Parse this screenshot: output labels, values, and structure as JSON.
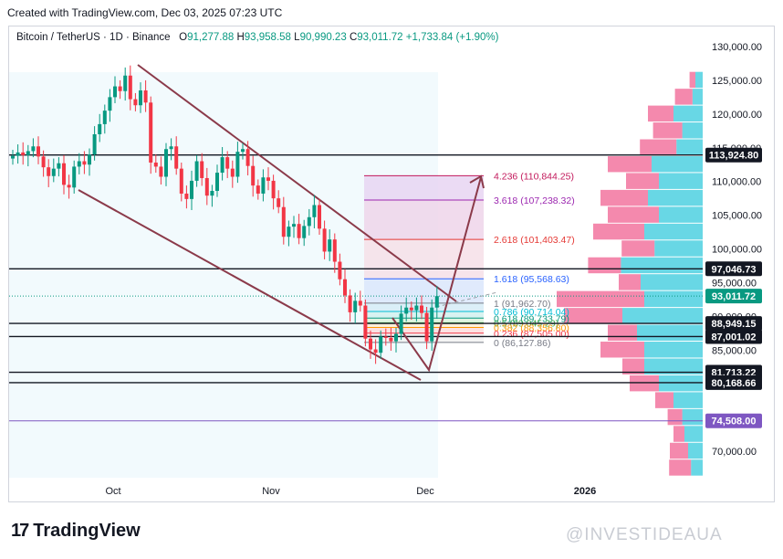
{
  "header": {
    "created_line": "Created with TradingView.com, Dec 03, 2025 07:23 UTC"
  },
  "legend": {
    "symbol": "Bitcoin / TetherUS · 1D · Binance",
    "open_label": "O",
    "open": "91,277.88",
    "high_label": "H",
    "high": "93,958.58",
    "low_label": "L",
    "low": "90,990.23",
    "close_label": "C",
    "close": "93,011.72",
    "change": "+1,733.84 (+1.90%)"
  },
  "footer": {
    "brand": "TradingView",
    "watermark": "@INVESTIDEAUA"
  },
  "colors": {
    "up": "#089981",
    "down": "#f23645",
    "trendline": "#8b3a4a",
    "volume_profile_up": "#4dd0e1",
    "volume_profile_down": "#f06292",
    "purple_line": "#7e57c2"
  },
  "chart_data": {
    "type": "candlestick",
    "x_ticks": [
      "Oct",
      "Nov",
      "Dec",
      "2026"
    ],
    "y_ticks": [
      "130,000.00",
      "125,000.00",
      "120,000.00",
      "115,000.00",
      "110,000.00",
      "105,000.00",
      "100,000.00",
      "95,000.00",
      "90,000.00",
      "85,000.00",
      "80,000.00",
      "75,000.00",
      "70,000.00"
    ],
    "ylim": [
      65500,
      131500
    ],
    "closes": [
      113800,
      114300,
      113900,
      114500,
      115200,
      113700,
      112100,
      110800,
      111900,
      112700,
      109500,
      109100,
      112200,
      113000,
      112500,
      114000,
      117000,
      118500,
      120500,
      122500,
      124100,
      123400,
      125700,
      122200,
      121300,
      123500,
      121700,
      112800,
      112200,
      110700,
      114800,
      115200,
      111900,
      108200,
      107400,
      110100,
      113000,
      110500,
      107900,
      108600,
      111300,
      113600,
      111900,
      110700,
      114400,
      114800,
      112300,
      109400,
      108200,
      110600,
      110100,
      107500,
      106200,
      101800,
      103300,
      103700,
      101600,
      103400,
      104700,
      106500,
      103000,
      99600,
      101400,
      98100,
      95500,
      93100,
      90600,
      92300,
      91600,
      86700,
      85100,
      84600,
      87000,
      86800,
      86300,
      87400,
      90400,
      91300,
      90900,
      91600,
      90500,
      86300,
      91300,
      93000
    ],
    "opens_shift": "previous_close",
    "horizontal_levels": [
      {
        "value": 113924.8,
        "label": "113,924.80",
        "style": "dark"
      },
      {
        "value": 97046.73,
        "label": "97,046.73",
        "style": "dark"
      },
      {
        "value": 88949.15,
        "label": "88,949.15",
        "style": "dark"
      },
      {
        "value": 87001.02,
        "label": "87,001.02",
        "style": "dark"
      },
      {
        "value": 81713.22,
        "label": "81,713.22",
        "style": "dark"
      },
      {
        "value": 80168.66,
        "label": "80,168.66",
        "style": "dark"
      },
      {
        "value": 74508.0,
        "label": "74,508.00",
        "style": "purple"
      }
    ],
    "current_price": {
      "value": 93011.72,
      "label": "93,011.72"
    },
    "fib_levels": [
      {
        "ratio": "4.236",
        "value": 110844.25,
        "text": "4.236 (110,844.25)",
        "color": "#c2185b"
      },
      {
        "ratio": "3.618",
        "value": 107238.32,
        "text": "3.618 (107,238.32)",
        "color": "#9c27b0"
      },
      {
        "ratio": "2.618",
        "value": 101403.47,
        "text": "2.618 (101,403.47)",
        "color": "#e53935"
      },
      {
        "ratio": "1.618",
        "value": 95568.63,
        "text": "1.618 (95,568.63)",
        "color": "#2962ff"
      },
      {
        "ratio": "1",
        "value": 91962.7,
        "text": "1 (91,962.70)",
        "color": "#787b86"
      },
      {
        "ratio": "0.786",
        "value": 90714.04,
        "text": "0.786 (90,714.04)",
        "color": "#00bcd4"
      },
      {
        "ratio": "0.618",
        "value": 89733.79,
        "text": "0.618 (89,733.79)",
        "color": "#089981"
      },
      {
        "ratio": "0.5",
        "value": 89045.29,
        "text": "0.5 (89,045.29)",
        "color": "#4caf50"
      },
      {
        "ratio": "0.382",
        "value": 88356.8,
        "text": "0.382 (88,356.80)",
        "color": "#ff9800"
      },
      {
        "ratio": "0.236",
        "value": 87505.0,
        "text": "0.236 (87,505.00)",
        "color": "#f23645"
      },
      {
        "ratio": "0",
        "value": 86127.86,
        "text": "0 (86,127.86)",
        "color": "#787b86"
      }
    ],
    "volume_profile": [
      {
        "price": 125000,
        "up": 10,
        "down": 8
      },
      {
        "price": 122500,
        "up": 14,
        "down": 24
      },
      {
        "price": 120000,
        "up": 40,
        "down": 35
      },
      {
        "price": 117500,
        "up": 28,
        "down": 40
      },
      {
        "price": 115000,
        "up": 36,
        "down": 50
      },
      {
        "price": 112500,
        "up": 70,
        "down": 60
      },
      {
        "price": 110000,
        "up": 60,
        "down": 45
      },
      {
        "price": 107500,
        "up": 75,
        "down": 65
      },
      {
        "price": 105000,
        "up": 60,
        "down": 70
      },
      {
        "price": 102500,
        "up": 80,
        "down": 70
      },
      {
        "price": 100000,
        "up": 66,
        "down": 45
      },
      {
        "price": 97500,
        "up": 112,
        "down": 45
      },
      {
        "price": 95000,
        "up": 85,
        "down": 30
      },
      {
        "price": 92500,
        "up": 80,
        "down": 120
      },
      {
        "price": 90000,
        "up": 110,
        "down": 80
      },
      {
        "price": 87500,
        "up": 90,
        "down": 40
      },
      {
        "price": 85000,
        "up": 80,
        "down": 60
      },
      {
        "price": 82500,
        "up": 80,
        "down": 30
      },
      {
        "price": 80000,
        "up": 60,
        "down": 40
      },
      {
        "price": 77500,
        "up": 40,
        "down": 25
      },
      {
        "price": 75000,
        "up": 28,
        "down": 20
      },
      {
        "price": 72500,
        "up": 25,
        "down": 15
      },
      {
        "price": 70000,
        "up": 20,
        "down": 25
      },
      {
        "price": 67500,
        "up": 16,
        "down": 30
      }
    ]
  }
}
